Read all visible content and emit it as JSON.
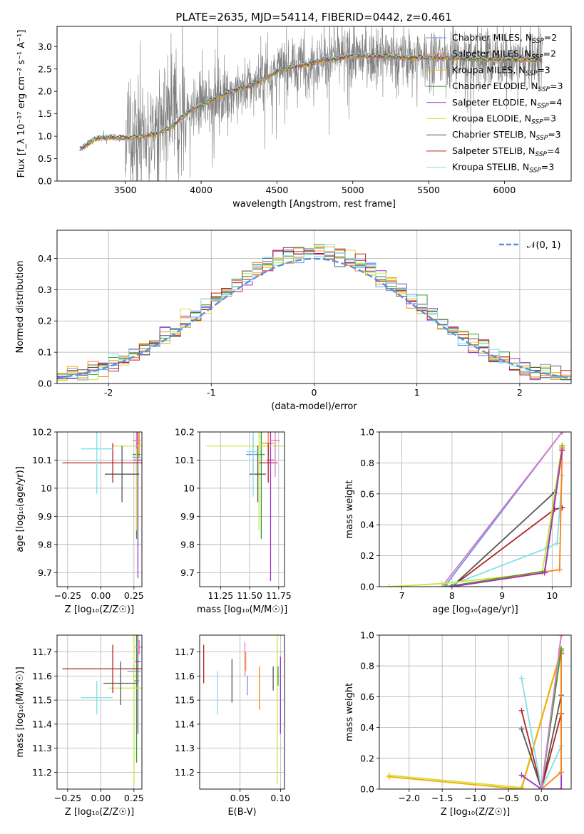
{
  "figure": {
    "title": "PLATE=2635, MJD=54114, FIBERID=0442, z=0.461"
  },
  "colors": {
    "chabrier_miles": "#6495ed",
    "salpeter_miles": "#ff7f0e",
    "kroupa_miles": "#ffa500",
    "chabrier_elodie": "#2ca02c",
    "salpeter_elodie": "#9932cc",
    "kroupa_elodie": "#c8e640",
    "chabrier_stelib": "#555555",
    "salpeter_stelib": "#b22222",
    "kroupa_stelib": "#80dfe8",
    "pink": "#e377c2",
    "gaussian": "#5b8fd9",
    "data": "#808080"
  },
  "chart_data": [
    {
      "id": "spectrum",
      "type": "line",
      "xlabel": "wavelength [Angstrom, rest frame]",
      "ylabel": "Flux [f_λ 10⁻¹⁷ erg cm⁻² s⁻¹ A⁻¹]",
      "xlim": [
        3050,
        6440
      ],
      "ylim": [
        0,
        3.45
      ],
      "xticks": [
        3500,
        4000,
        4500,
        5000,
        5500,
        6000
      ],
      "yticks": [
        0.0,
        0.5,
        1.0,
        1.5,
        2.0,
        2.5,
        3.0
      ],
      "legend_position": "top-right",
      "legend": [
        {
          "label": "Chabrier MILES, N",
          "sub": "SSP",
          "suffix": "=2",
          "color": "chabrier_miles"
        },
        {
          "label": "Salpeter MILES, N",
          "sub": "SSP",
          "suffix": "=2",
          "color": "salpeter_miles"
        },
        {
          "label": "Kroupa MILES, N",
          "sub": "SSP",
          "suffix": "=3",
          "color": "kroupa_miles"
        },
        {
          "label": "Chabrier ELODIE, N",
          "sub": "SSP",
          "suffix": "=3",
          "color": "chabrier_elodie"
        },
        {
          "label": "Salpeter ELODIE, N",
          "sub": "SSP",
          "suffix": "=4",
          "color": "salpeter_elodie"
        },
        {
          "label": "Kroupa ELODIE, N",
          "sub": "SSP",
          "suffix": "=3",
          "color": "kroupa_elodie"
        },
        {
          "label": "Chabrier STELIB, N",
          "sub": "SSP",
          "suffix": "=3",
          "color": "chabrier_stelib"
        },
        {
          "label": "Salpeter STELIB, N",
          "sub": "SSP",
          "suffix": "=4",
          "color": "salpeter_stelib"
        },
        {
          "label": "Kroupa STELIB, N",
          "sub": "SSP",
          "suffix": "=3",
          "color": "kroupa_stelib"
        }
      ],
      "data_range": [
        3200,
        6250
      ],
      "continuum": [
        [
          3200,
          0.7
        ],
        [
          3300,
          0.95
        ],
        [
          3400,
          0.98
        ],
        [
          3500,
          0.97
        ],
        [
          3600,
          1.0
        ],
        [
          3700,
          1.05
        ],
        [
          3800,
          1.2
        ],
        [
          3900,
          1.5
        ],
        [
          4000,
          1.7
        ],
        [
          4100,
          1.85
        ],
        [
          4200,
          2.0
        ],
        [
          4300,
          2.1
        ],
        [
          4400,
          2.25
        ],
        [
          4500,
          2.45
        ],
        [
          4600,
          2.55
        ],
        [
          4700,
          2.6
        ],
        [
          4800,
          2.7
        ],
        [
          4900,
          2.72
        ],
        [
          5000,
          2.8
        ],
        [
          5200,
          2.78
        ],
        [
          5400,
          2.75
        ],
        [
          5600,
          2.75
        ],
        [
          5800,
          2.72
        ],
        [
          6000,
          2.72
        ],
        [
          6250,
          2.7
        ]
      ]
    },
    {
      "id": "residuals",
      "type": "histogram",
      "xlabel": "(data-model)/error",
      "ylabel": "Normed distribution",
      "xlim": [
        -2.5,
        2.5
      ],
      "ylim": [
        0,
        0.49
      ],
      "xticks": [
        -2,
        -1,
        0,
        1,
        2
      ],
      "yticks": [
        0.0,
        0.1,
        0.2,
        0.3,
        0.4
      ],
      "legend": "𝒩(0, 1)",
      "legend_position": "top-right",
      "bin_width": 0.1
    },
    {
      "id": "age_vs_z",
      "type": "scatter",
      "xlabel": "Z [log₁₀(Z/Z☉)]",
      "ylabel": "age  [log₁₀(age/yr)]",
      "xlim": [
        -0.33,
        0.31
      ],
      "ylim": [
        9.65,
        10.2
      ],
      "xticks": [
        -0.25,
        0.0,
        0.25
      ],
      "xticklabels": [
        "−0.25",
        "0.00",
        "0.25"
      ],
      "yticks": [
        9.7,
        9.8,
        9.9,
        10.0,
        10.1,
        10.2
      ],
      "points": [
        {
          "color": "chabrier_miles",
          "x": 0.27,
          "y": 10.11,
          "xe": 0.03,
          "ye": 0.05
        },
        {
          "color": "salpeter_miles",
          "x": 0.28,
          "y": 10.15,
          "xe": 0.02,
          "ye": 0.06
        },
        {
          "color": "kroupa_miles",
          "x": 0.29,
          "y": 10.16,
          "xe": 0.01,
          "ye": 0.05
        },
        {
          "color": "chabrier_elodie",
          "x": 0.27,
          "y": 10.12,
          "xe": 0.03,
          "ye": 0.3
        },
        {
          "color": "salpeter_elodie",
          "x": 0.28,
          "y": 10.1,
          "xe": 0.03,
          "ye": 0.42
        },
        {
          "color": "kroupa_elodie",
          "x": 0.27,
          "y": 10.15,
          "xe": 0.18,
          "ye": 0.3
        },
        {
          "color": "chabrier_stelib",
          "x": 0.16,
          "y": 10.05,
          "xe": 0.13,
          "ye": 0.1
        },
        {
          "color": "salpeter_stelib",
          "x": 0.09,
          "y": 10.09,
          "xe": 0.38,
          "ye": 0.07
        },
        {
          "color": "kroupa_stelib",
          "x": -0.03,
          "y": 10.14,
          "xe": 0.12,
          "ye": 0.16
        },
        {
          "color": "pink",
          "x": 0.27,
          "y": 10.17,
          "xe": 0.03,
          "ye": 0.03
        }
      ]
    },
    {
      "id": "age_vs_mass",
      "type": "scatter",
      "xlabel": "mass [log₁₀(M/M☉)]",
      "ylabel": "",
      "xlim": [
        11.07,
        11.8
      ],
      "ylim": [
        9.65,
        10.2
      ],
      "xticks": [
        11.25,
        11.5,
        11.75
      ],
      "xticklabels": [
        "11.25",
        "11.50",
        "11.75"
      ],
      "yticks": [
        9.7,
        9.8,
        9.9,
        10.0,
        10.1,
        10.2
      ],
      "points": [
        {
          "color": "chabrier_miles",
          "x": 11.53,
          "y": 10.12,
          "xe": 0.06,
          "ye": 0.07
        },
        {
          "color": "salpeter_miles",
          "x": 11.66,
          "y": 10.16,
          "xe": 0.05,
          "ye": 0.05
        },
        {
          "color": "kroupa_miles",
          "x": 11.6,
          "y": 10.15,
          "xe": 0.04,
          "ye": 0.05
        },
        {
          "color": "chabrier_elodie",
          "x": 11.6,
          "y": 10.12,
          "xe": 0.03,
          "ye": 0.3
        },
        {
          "color": "salpeter_elodie",
          "x": 11.68,
          "y": 10.1,
          "xe": 0.03,
          "ye": 0.43
        },
        {
          "color": "kroupa_elodie",
          "x": 11.58,
          "y": 10.15,
          "xe": 0.45,
          "ye": 0.3
        },
        {
          "color": "chabrier_stelib",
          "x": 11.57,
          "y": 10.05,
          "xe": 0.07,
          "ye": 0.1
        },
        {
          "color": "salpeter_stelib",
          "x": 11.66,
          "y": 10.09,
          "xe": 0.08,
          "ye": 0.07
        },
        {
          "color": "kroupa_stelib",
          "x": 11.53,
          "y": 10.13,
          "xe": 0.06,
          "ye": 0.16
        },
        {
          "color": "pink",
          "x": 11.72,
          "y": 10.17,
          "xe": 0.04,
          "ye": 0.13
        }
      ]
    },
    {
      "id": "weight_vs_age",
      "type": "line",
      "xlabel": "age  [log₁₀(age/yr)]",
      "ylabel": "mass weight",
      "xlim": [
        6.55,
        10.38
      ],
      "ylim": [
        0,
        1.0
      ],
      "xticks": [
        7,
        8,
        9,
        10
      ],
      "yticks": [
        0.0,
        0.2,
        0.4,
        0.6,
        0.8,
        1.0
      ],
      "yticklabels": [
        "0.0",
        "0.2",
        "0.4",
        "0.6",
        "0.8",
        "1.0"
      ],
      "series": [
        {
          "color": "chabrier_miles",
          "points": [
            [
              7.85,
              0.0
            ],
            [
              10.2,
              1.0
            ]
          ]
        },
        {
          "color": "pink",
          "points": [
            [
              7.8,
              0.0
            ],
            [
              10.2,
              1.0
            ]
          ]
        },
        {
          "color": "chabrier_stelib",
          "points": [
            [
              8.0,
              0.0
            ],
            [
              10.05,
              0.61
            ]
          ]
        },
        {
          "color": "salpeter_stelib",
          "points": [
            [
              8.0,
              0.0
            ],
            [
              10.05,
              0.5
            ],
            [
              10.2,
              0.51
            ]
          ]
        },
        {
          "color": "kroupa_stelib",
          "points": [
            [
              7.9,
              0.0
            ],
            [
              9.9,
              0.25
            ],
            [
              10.1,
              0.28
            ],
            [
              10.2,
              0.72
            ]
          ]
        },
        {
          "color": "kroupa_elodie",
          "points": [
            [
              6.75,
              0.0
            ],
            [
              7.8,
              0.02
            ],
            [
              9.8,
              0.09
            ],
            [
              10.2,
              0.91
            ]
          ]
        },
        {
          "color": "chabrier_elodie",
          "points": [
            [
              7.9,
              0.0
            ],
            [
              9.85,
              0.1
            ],
            [
              10.2,
              0.91
            ]
          ]
        },
        {
          "color": "kroupa_miles",
          "points": [
            [
              8.0,
              0.0
            ],
            [
              9.85,
              0.09
            ],
            [
              10.2,
              0.9
            ]
          ]
        },
        {
          "color": "salpeter_miles",
          "points": [
            [
              8.0,
              0.0
            ],
            [
              10.15,
              0.11
            ],
            [
              10.2,
              0.89
            ]
          ]
        },
        {
          "color": "salpeter_elodie",
          "points": [
            [
              8.0,
              0.0
            ],
            [
              9.85,
              0.09
            ],
            [
              10.2,
              0.88
            ]
          ]
        }
      ]
    },
    {
      "id": "mass_vs_z",
      "type": "scatter",
      "xlabel": "Z [log₁₀(Z/Z☉)]",
      "ylabel": "mass [log₁₀(M/M☉)]",
      "xlim": [
        -0.33,
        0.31
      ],
      "ylim": [
        11.13,
        11.77
      ],
      "xticks": [
        -0.25,
        0.0,
        0.25
      ],
      "xticklabels": [
        "−0.25",
        "0.00",
        "0.25"
      ],
      "yticks": [
        11.2,
        11.3,
        11.4,
        11.5,
        11.6,
        11.7
      ],
      "points": [
        {
          "color": "chabrier_miles",
          "x": 0.25,
          "y": 11.62,
          "xe": 0.05,
          "ye": 0.03
        },
        {
          "color": "salpeter_miles",
          "x": 0.28,
          "y": 11.66,
          "xe": 0.02,
          "ye": 0.04
        },
        {
          "color": "kroupa_miles",
          "x": 0.27,
          "y": 11.6,
          "xe": 0.02,
          "ye": 0.04
        },
        {
          "color": "chabrier_elodie",
          "x": 0.27,
          "y": 11.58,
          "xe": 0.02,
          "ye": 0.34
        },
        {
          "color": "salpeter_elodie",
          "x": 0.28,
          "y": 11.66,
          "xe": 0.02,
          "ye": 0.3
        },
        {
          "color": "kroupa_elodie",
          "x": 0.25,
          "y": 11.55,
          "xe": 0.19,
          "ye": 0.4
        },
        {
          "color": "chabrier_stelib",
          "x": 0.15,
          "y": 11.57,
          "xe": 0.13,
          "ye": 0.09
        },
        {
          "color": "salpeter_stelib",
          "x": 0.09,
          "y": 11.63,
          "xe": 0.38,
          "ye": 0.1
        },
        {
          "color": "kroupa_stelib",
          "x": -0.03,
          "y": 11.51,
          "xe": 0.12,
          "ye": 0.07
        },
        {
          "color": "pink",
          "x": 0.29,
          "y": 11.72,
          "xe": 0.03,
          "ye": 0.03
        }
      ]
    },
    {
      "id": "mass_vs_ebv",
      "type": "scatter",
      "xlabel": "E(B-V)",
      "ylabel": "",
      "xlim": [
        0.0,
        0.105
      ],
      "ylim": [
        11.13,
        11.77
      ],
      "xticks": [
        0.05,
        0.1
      ],
      "xticklabels": [
        "0.05",
        "0.10"
      ],
      "yticks": [
        11.2,
        11.3,
        11.4,
        11.5,
        11.6,
        11.7
      ],
      "points": [
        {
          "color": "chabrier_miles",
          "x": 0.059,
          "y": 11.56,
          "ye": 0.04
        },
        {
          "color": "salpeter_miles",
          "x": 0.074,
          "y": 11.55,
          "ye": 0.09
        },
        {
          "color": "kroupa_miles",
          "x": 0.057,
          "y": 11.66,
          "ye": 0.04
        },
        {
          "color": "chabrier_elodie",
          "x": 0.097,
          "y": 11.6,
          "ye": 0.04
        },
        {
          "color": "salpeter_elodie",
          "x": 0.1,
          "y": 11.52,
          "ye": 0.16
        },
        {
          "color": "kroupa_elodie",
          "x": 0.096,
          "y": 11.55,
          "ye": 0.4
        },
        {
          "color": "chabrier_stelib",
          "x": 0.04,
          "y": 11.58,
          "ye": 0.09
        },
        {
          "color": "chabrier_stelib",
          "x": 0.091,
          "y": 11.59,
          "ye": 0.05
        },
        {
          "color": "salpeter_stelib",
          "x": 0.005,
          "y": 11.65,
          "ye": 0.08
        },
        {
          "color": "kroupa_stelib",
          "x": 0.022,
          "y": 11.53,
          "ye": 0.09
        },
        {
          "color": "pink",
          "x": 0.056,
          "y": 11.67,
          "ye": 0.07
        }
      ]
    },
    {
      "id": "weight_vs_z",
      "type": "line",
      "xlabel": "Z [log₁₀(Z/Z☉)]",
      "ylabel": "mass weight",
      "xlim": [
        -2.45,
        0.45
      ],
      "ylim": [
        0,
        1.0
      ],
      "xticks": [
        -2.0,
        -1.5,
        -1.0,
        -0.5,
        0.0
      ],
      "xticklabels": [
        "−2.0",
        "−1.5",
        "−1.0",
        "−0.5",
        "0.0"
      ],
      "yticks": [
        0.0,
        0.2,
        0.4,
        0.6,
        0.8,
        1.0
      ],
      "yticklabels": [
        "0.0",
        "0.2",
        "0.4",
        "0.6",
        "0.8",
        "1.0"
      ],
      "series": [
        {
          "color": "kroupa_elodie",
          "points": [
            [
              -2.3,
              0.09
            ],
            [
              -0.3,
              0.01
            ],
            [
              0.3,
              0.91
            ]
          ]
        },
        {
          "color": "kroupa_miles",
          "points": [
            [
              -2.3,
              0.08
            ],
            [
              -0.3,
              0.0
            ],
            [
              0.3,
              0.9
            ]
          ]
        },
        {
          "color": "chabrier_stelib",
          "points": [
            [
              -0.3,
              0.39
            ],
            [
              0.0,
              0.0
            ],
            [
              0.3,
              0.61
            ]
          ]
        },
        {
          "color": "salpeter_stelib",
          "points": [
            [
              -0.3,
              0.51
            ],
            [
              0.0,
              0.0
            ],
            [
              0.3,
              0.49
            ]
          ]
        },
        {
          "color": "kroupa_stelib",
          "points": [
            [
              -0.3,
              0.72
            ],
            [
              0.0,
              0.0
            ],
            [
              0.3,
              0.28
            ]
          ]
        },
        {
          "color": "salpeter_elodie",
          "points": [
            [
              -0.3,
              0.09
            ],
            [
              0.0,
              0.0
            ],
            [
              0.3,
              0.0
            ],
            [
              0.3,
              0.88
            ]
          ]
        },
        {
          "color": "salpeter_miles",
          "points": [
            [
              0.0,
              0.0
            ],
            [
              0.3,
              0.11
            ],
            [
              0.3,
              0.89
            ]
          ]
        },
        {
          "color": "chabrier_elodie",
          "points": [
            [
              0.0,
              0.0
            ],
            [
              0.3,
              0.91
            ]
          ]
        },
        {
          "color": "chabrier_miles",
          "points": [
            [
              0.0,
              0.0
            ],
            [
              0.3,
              1.0
            ]
          ]
        },
        {
          "color": "pink",
          "points": [
            [
              0.0,
              0.0
            ],
            [
              0.3,
              1.0
            ]
          ]
        }
      ]
    }
  ]
}
